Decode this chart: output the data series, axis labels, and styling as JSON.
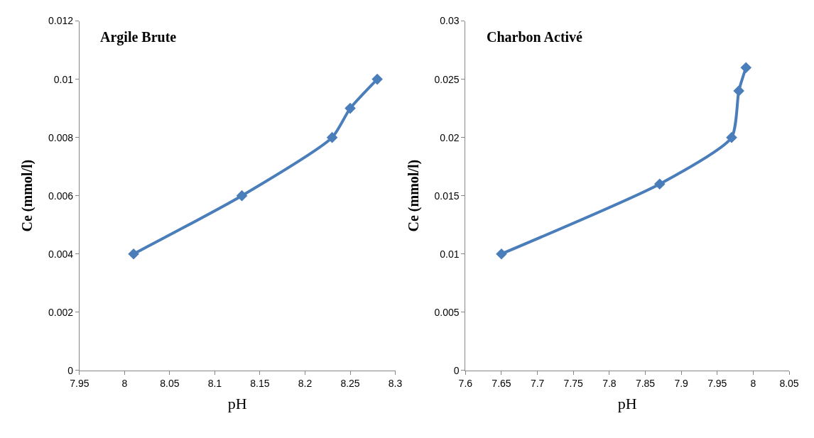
{
  "chart_data": [
    {
      "type": "line",
      "title": "Argile Brute",
      "xlabel": "pH",
      "ylabel": "Ce (mmol/l)",
      "x": [
        8.01,
        8.13,
        8.23,
        8.25,
        8.28
      ],
      "values": [
        0.004,
        0.006,
        0.008,
        0.009,
        0.01
      ],
      "color": "#4a7ebb",
      "marker": "diamond",
      "line_style": "solid",
      "grid": false,
      "xlim": [
        7.95,
        8.3
      ],
      "xticks": [
        7.95,
        8,
        8.05,
        8.1,
        8.15,
        8.2,
        8.25,
        8.3
      ],
      "ylim": [
        0,
        0.012
      ],
      "yticks": [
        0,
        0.002,
        0.004,
        0.006,
        0.008,
        0.01,
        0.012
      ]
    },
    {
      "type": "line",
      "title": "Charbon Activé",
      "xlabel": "pH",
      "ylabel": "Ce (mmol/l)",
      "x": [
        7.65,
        7.87,
        7.97,
        7.98,
        7.99
      ],
      "values": [
        0.01,
        0.016,
        0.02,
        0.024,
        0.026
      ],
      "color": "#4a7ebb",
      "marker": "diamond",
      "line_style": "solid",
      "grid": false,
      "xlim": [
        7.6,
        8.05
      ],
      "xticks": [
        7.6,
        7.65,
        7.7,
        7.75,
        7.8,
        7.85,
        7.9,
        7.95,
        8,
        8.05
      ],
      "ylim": [
        0,
        0.03
      ],
      "yticks": [
        0,
        0.005,
        0.01,
        0.015,
        0.02,
        0.025,
        0.03
      ]
    }
  ]
}
